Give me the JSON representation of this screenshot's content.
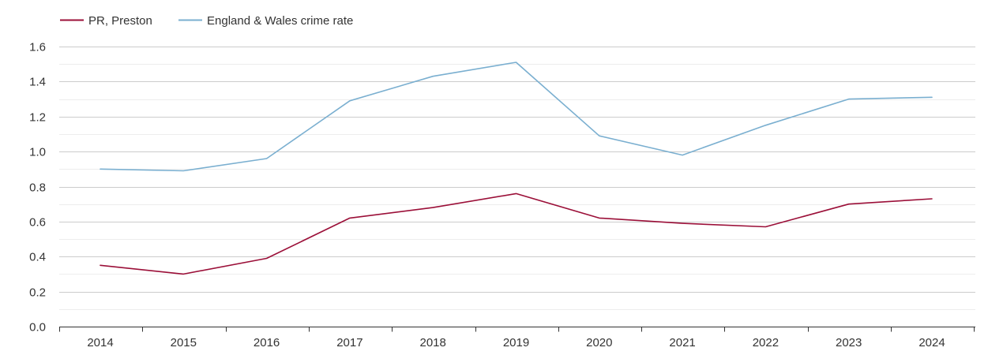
{
  "chart_data": {
    "type": "line",
    "title": "",
    "xlabel": "",
    "ylabel": "",
    "categories": [
      "2014",
      "2015",
      "2016",
      "2017",
      "2018",
      "2019",
      "2020",
      "2021",
      "2022",
      "2023",
      "2024"
    ],
    "ylim": [
      0,
      1.6
    ],
    "yticks": [
      0.0,
      0.2,
      0.4,
      0.6,
      0.8,
      1.0,
      1.2,
      1.4,
      1.6
    ],
    "ytick_labels": [
      "0.0",
      "0.2",
      "0.4",
      "0.6",
      "0.8",
      "1.0",
      "1.2",
      "1.4",
      "1.6"
    ],
    "grid": true,
    "legend_position": "top-left",
    "series": [
      {
        "name": "PR, Preston",
        "color": "#9b0f38",
        "values": [
          0.35,
          0.3,
          0.39,
          0.62,
          0.68,
          0.76,
          0.62,
          0.59,
          0.57,
          0.7,
          0.73
        ]
      },
      {
        "name": "England & Wales crime rate",
        "color": "#7aafd0",
        "values": [
          0.9,
          0.89,
          0.96,
          1.29,
          1.43,
          1.51,
          1.09,
          0.98,
          1.15,
          1.3,
          1.31
        ]
      }
    ]
  }
}
